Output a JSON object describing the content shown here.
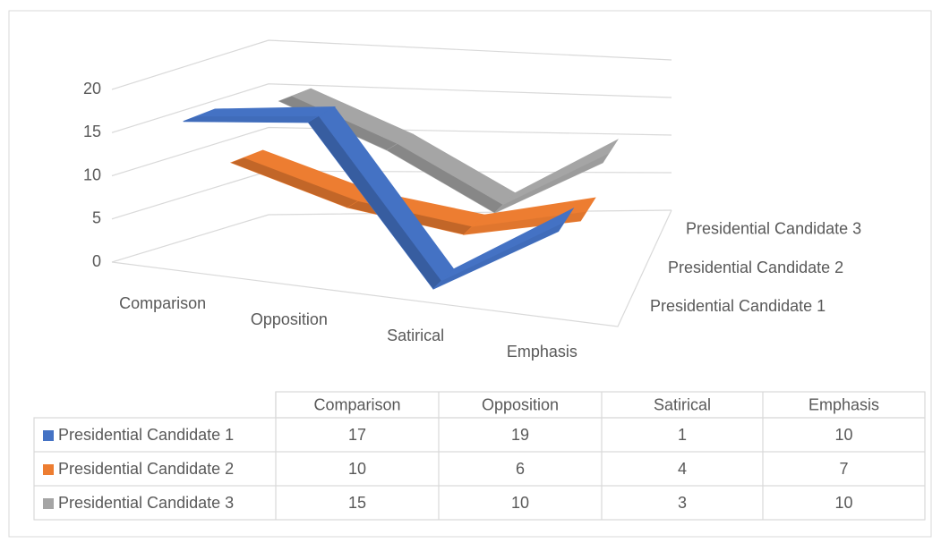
{
  "chart_data": {
    "type": "line3d",
    "categories": [
      "Comparison",
      "Opposition",
      "Satirical",
      "Emphasis"
    ],
    "series": [
      {
        "name": "Presidential Candidate 1",
        "color": "#4472c4",
        "values": [
          17,
          19,
          1,
          10
        ]
      },
      {
        "name": "Presidential Candidate 2",
        "color": "#ed7d31",
        "values": [
          10,
          6,
          4,
          7
        ]
      },
      {
        "name": "Presidential Candidate 3",
        "color": "#a5a5a5",
        "values": [
          15,
          10,
          3,
          10
        ]
      }
    ],
    "ylim": [
      0,
      20
    ],
    "yticks": [
      0,
      5,
      10,
      15,
      20
    ],
    "grid": true,
    "data_table": true
  }
}
